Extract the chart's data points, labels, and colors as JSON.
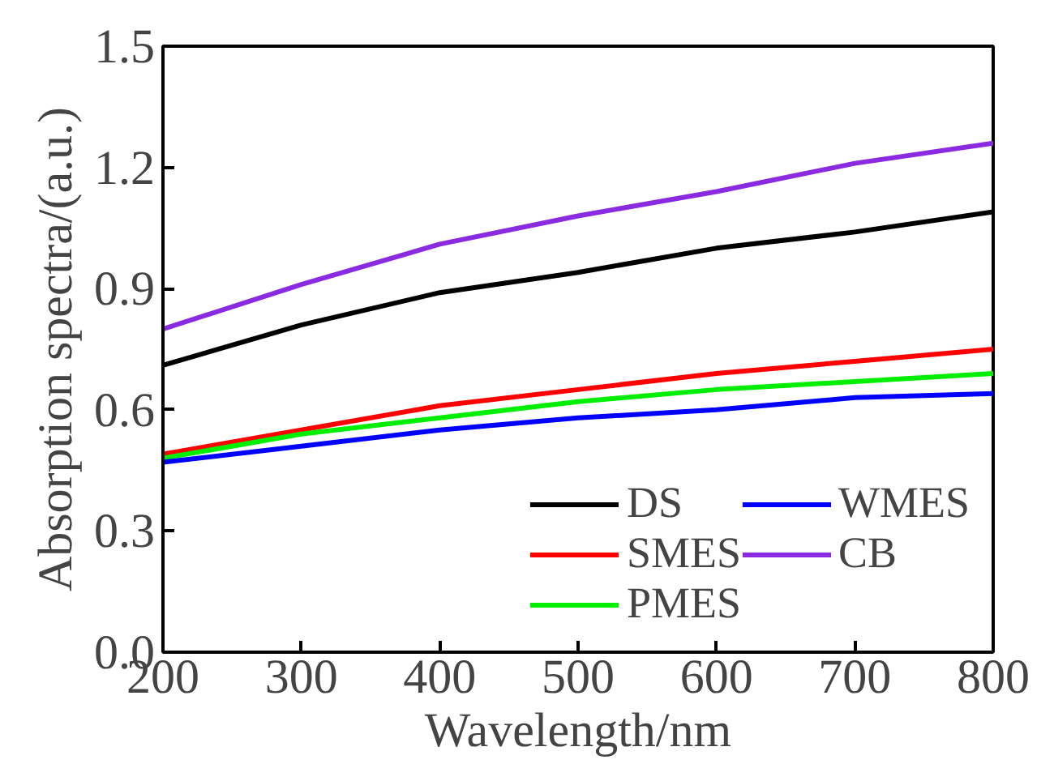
{
  "chart_data": {
    "type": "line",
    "xlabel": "Wavelength/nm",
    "ylabel": "Absorption spectra/(a.u.)",
    "x": [
      200,
      300,
      400,
      500,
      600,
      700,
      800
    ],
    "xlim": [
      200,
      800
    ],
    "xticks": [
      200,
      300,
      400,
      500,
      600,
      700,
      800
    ],
    "ylim": [
      0,
      1.5
    ],
    "yticks": [
      {
        "value": 0,
        "label": "0.0"
      },
      0.3,
      0.6,
      0.9,
      1.2,
      1.5
    ],
    "grid": false,
    "legend": "bottom right",
    "marker": "none",
    "line_style": "solid",
    "series": [
      {
        "name": "DS",
        "color": "#000000",
        "values": [
          0.71,
          0.81,
          0.89,
          0.94,
          1.0,
          1.04,
          1.09
        ]
      },
      {
        "name": "SMES",
        "color": "#ff0000",
        "values": [
          0.49,
          0.55,
          0.61,
          0.65,
          0.69,
          0.72,
          0.75
        ]
      },
      {
        "name": "PMES",
        "color": "#00ee00",
        "values": [
          0.48,
          0.54,
          0.58,
          0.62,
          0.65,
          0.67,
          0.69
        ]
      },
      {
        "name": "WMES",
        "color": "#0000ff",
        "values": [
          0.47,
          0.51,
          0.55,
          0.58,
          0.6,
          0.63,
          0.64
        ]
      },
      {
        "name": "CB",
        "color": "#8a2be2",
        "values": [
          0.8,
          0.91,
          1.01,
          1.08,
          1.14,
          1.21,
          1.26
        ]
      }
    ]
  }
}
